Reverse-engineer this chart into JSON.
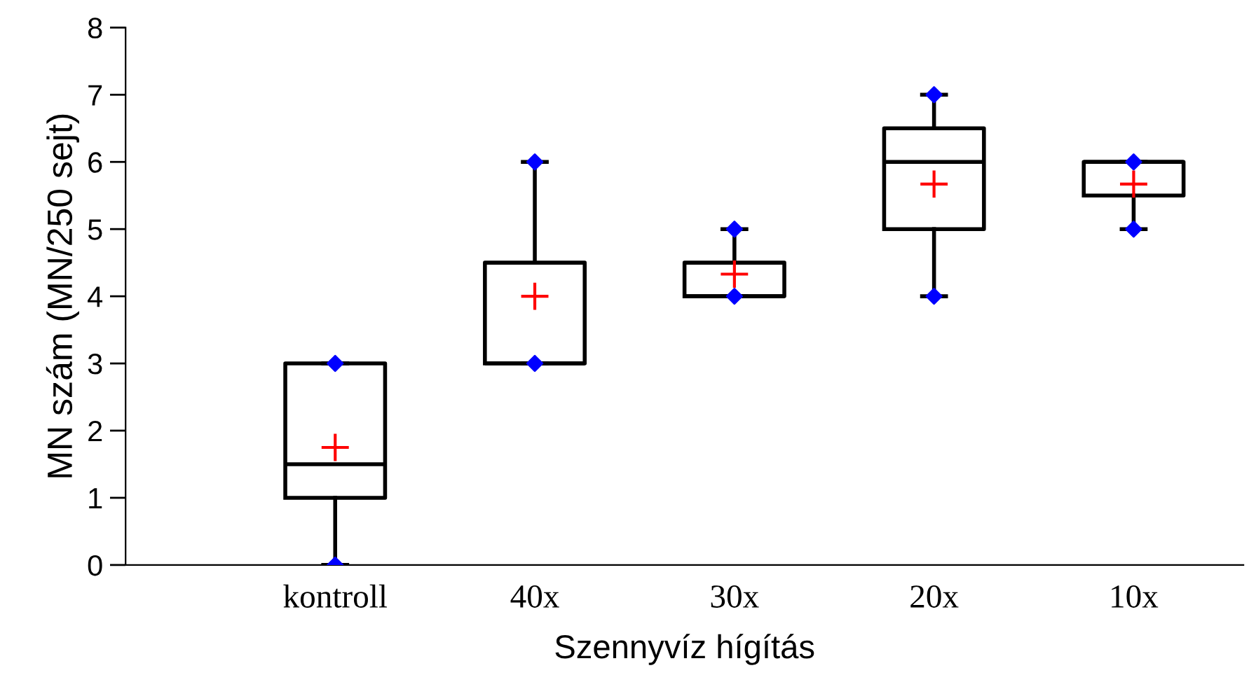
{
  "chart_data": {
    "type": "box",
    "xlabel": "Szennyvíz hígítás",
    "ylabel": "MN szám (MN/250 sejt)",
    "categories": [
      "kontroll",
      "40x",
      "30x",
      "20x",
      "10x"
    ],
    "boxes": [
      {
        "low": 0,
        "q1": 1,
        "median": 1.5,
        "q3": 3,
        "high": 3,
        "mean": 1.75
      },
      {
        "low": 3,
        "q1": 3,
        "median": 3,
        "q3": 4.5,
        "high": 6,
        "mean": 4
      },
      {
        "low": 4,
        "q1": 4,
        "median": 4,
        "q3": 4.5,
        "high": 5,
        "mean": 4.33
      },
      {
        "low": 4,
        "q1": 5,
        "median": 6,
        "q3": 6.5,
        "high": 7,
        "mean": 5.67
      },
      {
        "low": 5,
        "q1": 5.5,
        "median": 6,
        "q3": 6,
        "high": 6,
        "mean": 5.67
      }
    ],
    "series": [
      {
        "type": "scatter",
        "color": "#0000ff",
        "marker": "diamond",
        "x": [
          "kontroll",
          "kontroll",
          "40x",
          "40x",
          "30x",
          "30x",
          "20x",
          "20x",
          "10x",
          "10x"
        ],
        "values": [
          0,
          3,
          3,
          6,
          4,
          5,
          4,
          7,
          5,
          6
        ]
      }
    ],
    "ylim": [
      0,
      8
    ],
    "yticks": [
      0,
      1,
      2,
      3,
      4,
      5,
      6,
      7,
      8
    ],
    "grid": false,
    "legend": false
  }
}
